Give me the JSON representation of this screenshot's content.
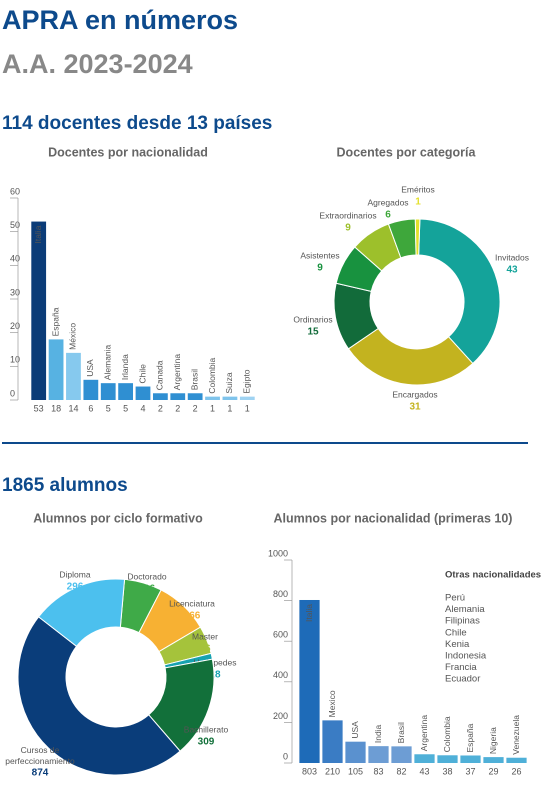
{
  "header": {
    "title": "APRA en números",
    "subtitle": "A.A. 2023-2024"
  },
  "sections": [
    "114 docentes desde 13 países",
    "1865 alumnos"
  ],
  "chart_data": [
    {
      "type": "bar",
      "title": "Docentes por nacionalidad",
      "categories": [
        "Italia",
        "España",
        "México",
        "USA",
        "Alemania",
        "Irlanda",
        "Chile",
        "Canada",
        "Argentina",
        "Brasil",
        "Colombia",
        "Suiza",
        "Egipto"
      ],
      "values": [
        53,
        18,
        14,
        6,
        5,
        5,
        4,
        2,
        2,
        2,
        1,
        1,
        1
      ],
      "colors": [
        "#0b3c78",
        "#57b2e2",
        "#86c9ee",
        "#2f8fd2",
        "#2f8fd2",
        "#2f8fd2",
        "#2f8fd2",
        "#2f8fd2",
        "#2f8fd2",
        "#2f8fd2",
        "#7fc4ec",
        "#7fc4ec",
        "#9fd3f2"
      ],
      "ylim": [
        0,
        60
      ],
      "yticks": [
        0,
        10,
        20,
        30,
        40,
        50,
        60
      ]
    },
    {
      "type": "pie",
      "title": "Docentes por categoría",
      "categories": [
        "Invitados",
        "Encargados",
        "Ordinarios",
        "Asistentes",
        "Extraordinarios",
        "Agregados",
        "Eméritos"
      ],
      "values": [
        43,
        31,
        15,
        9,
        9,
        6,
        1
      ],
      "colors": [
        "#14a39a",
        "#c3b31f",
        "#126b3a",
        "#18923f",
        "#9dc02b",
        "#3ea73b",
        "#e3e02c"
      ]
    },
    {
      "type": "pie",
      "title": "Alumnos por ciclo formativo",
      "categories": [
        "Doctorado",
        "Licenciatura",
        "Master",
        "Huéspedes",
        "Bachillerato",
        "Cursos de perfeccionamiento",
        "Diploma"
      ],
      "values": [
        116,
        166,
        86,
        18,
        309,
        874,
        296
      ],
      "colors": [
        "#3faa48",
        "#f7b133",
        "#a5c33b",
        "#17a2b0",
        "#12703a",
        "#0a3d7a",
        "#4cc0ee"
      ]
    },
    {
      "type": "bar",
      "title": "Alumnos por nacionalidad (primeras 10)",
      "categories": [
        "Italia",
        "Mexico",
        "USA",
        "India",
        "Brasil",
        "Argentina",
        "Colombia",
        "España",
        "Nigeria",
        "Venezuela"
      ],
      "values": [
        803,
        210,
        105,
        83,
        82,
        43,
        38,
        37,
        29,
        26
      ],
      "colors": [
        "#1e6bb8",
        "#3a7cc4",
        "#5a91cf",
        "#6d9dd4",
        "#6d9dd4",
        "#4fb0d8",
        "#4fb0d8",
        "#4fb0d8",
        "#4fb0d8",
        "#4fb0d8"
      ],
      "ylim": [
        0,
        1000
      ],
      "yticks": [
        0,
        200,
        400,
        600,
        800,
        1000
      ],
      "annotation": {
        "title": "Otras nacionalidades",
        "items": [
          "Perú",
          "Alemania",
          "Filipinas",
          "Chile",
          "Kenia",
          "Indonesia",
          "Francia",
          "Ecuador"
        ]
      }
    }
  ]
}
